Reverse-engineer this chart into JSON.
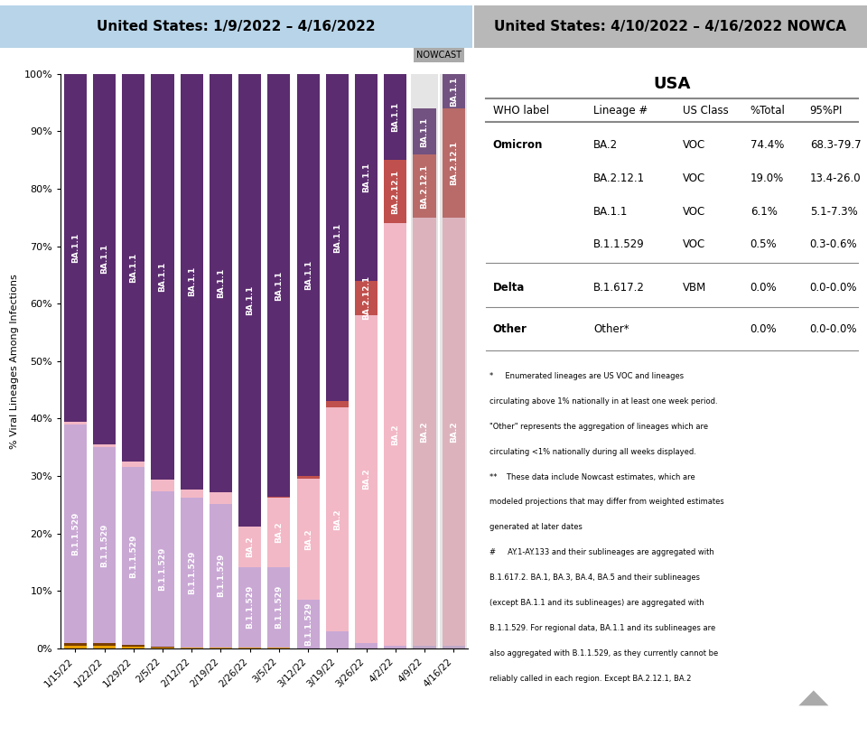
{
  "title_left": "United States: 1/9/2022 – 4/16/2022",
  "title_right": "United States: 4/10/2022 – 4/16/2022 NOWCA",
  "ylabel": "% Viral Lineages Among Infections",
  "nowcast_label": "NOWCAST",
  "dates": [
    "1/15/22",
    "1/22/22",
    "1/29/22",
    "2/5/22",
    "2/12/22",
    "2/19/22",
    "2/26/22",
    "3/5/22",
    "3/12/22",
    "3/19/22",
    "3/26/22",
    "4/2/22",
    "4/9/22",
    "4/16/22"
  ],
  "colors": {
    "Other": "#E8A000",
    "B.1.617.2": "#7B3F00",
    "B.1.1.529": "#C9A8D4",
    "BA.2": "#F2B8C6",
    "BA.2.12.1": "#C0504D",
    "BA.1.1": "#5B2C6F",
    "background_left": "#B8D4E8",
    "background_right": "#B8B8B8",
    "nowcast_bg": "#AAAAAA"
  },
  "bar_data": {
    "Other": [
      0.5,
      0.5,
      0.3,
      0.2,
      0.1,
      0.1,
      0.1,
      0.1,
      0.0,
      0.0,
      0.0,
      0.0,
      0.0,
      0.0
    ],
    "B.1.617.2": [
      0.5,
      0.5,
      0.3,
      0.2,
      0.1,
      0.1,
      0.1,
      0.1,
      0.0,
      0.0,
      0.0,
      0.0,
      0.0,
      0.0
    ],
    "B.1.1.529": [
      38.0,
      34.0,
      31.0,
      27.0,
      26.0,
      25.0,
      14.0,
      14.0,
      8.5,
      3.0,
      1.0,
      0.5,
      0.5,
      0.5
    ],
    "BA.2": [
      0.5,
      0.5,
      1.0,
      2.0,
      1.5,
      2.0,
      7.0,
      12.0,
      21.0,
      39.0,
      57.0,
      73.5,
      74.4,
      74.4
    ],
    "BA.2.12.1": [
      0.0,
      0.0,
      0.0,
      0.0,
      0.0,
      0.0,
      0.0,
      0.2,
      0.5,
      1.0,
      6.0,
      11.0,
      11.0,
      19.0
    ],
    "BA.1.1": [
      60.5,
      64.5,
      67.4,
      70.6,
      72.3,
      72.8,
      78.8,
      73.5,
      70.0,
      57.0,
      36.0,
      15.0,
      8.0,
      6.1
    ]
  },
  "layers": [
    "Other",
    "B.1.617.2",
    "B.1.1.529",
    "BA.2",
    "BA.2.12.1",
    "BA.1.1"
  ],
  "table_data": {
    "headers": [
      "WHO label",
      "Lineage #",
      "US Class",
      "%Total",
      "95%PI"
    ],
    "rows": [
      [
        "Omicron",
        "BA.2",
        "VOC",
        "74.4%",
        "68.3-79.7"
      ],
      [
        "",
        "BA.2.12.1",
        "VOC",
        "19.0%",
        "13.4-26.0"
      ],
      [
        "",
        "BA.1.1",
        "VOC",
        "6.1%",
        "5.1-7.3%"
      ],
      [
        "",
        "B.1.1.529",
        "VOC",
        "0.5%",
        "0.3-0.6%"
      ],
      [
        "Delta",
        "B.1.617.2",
        "VBM",
        "0.0%",
        "0.0-0.0%"
      ],
      [
        "Other",
        "Other*",
        "",
        "0.0%",
        "0.0-0.0%"
      ]
    ]
  },
  "footnote": "*     Enumerated lineages are US VOC and lineages\ncirculating above 1% nationally in at least one week period.\n\"Other\" represents the aggregation of lineages which are\ncirculating <1% nationally during all weeks displayed.\n**    These data include Nowcast estimates, which are\nmodeled projections that may differ from weighted estimates\ngenerated at later dates\n#     AY.1-AY.133 and their sublineages are aggregated with\nB.1.617.2. BA.1, BA.3, BA.4, BA.5 and their sublineages\n(except BA.1.1 and its sublineages) are aggregated with\nB.1.1.529. For regional data, BA.1.1 and its sublineages are\nalso aggregated with B.1.1.529, as they currently cannot be\nreliably called in each region. Except BA.2.12.1, BA.2"
}
